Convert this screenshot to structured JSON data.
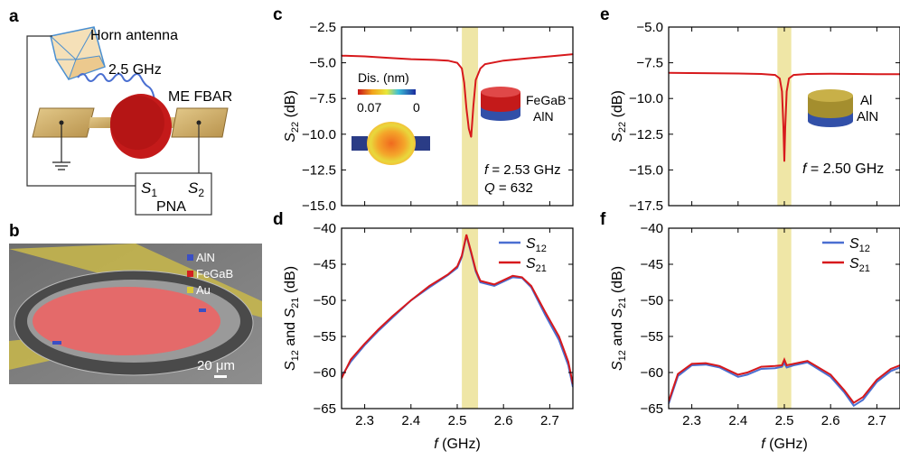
{
  "panels": {
    "a": {
      "letter": "a",
      "horn_label": "Horn antenna",
      "freq_label": "2.5 GHz",
      "device_label": "ME FBAR",
      "pna_s1": "S",
      "pna_s1_sub": "1",
      "pna_s2": "S",
      "pna_s2_sub": "2",
      "pna_label": "PNA"
    },
    "b": {
      "letter": "b",
      "legend": [
        "AlN",
        "FeGaB",
        "Au"
      ],
      "legend_colors": [
        "#3b4fc4",
        "#d32020",
        "#d8c838"
      ],
      "scale_bar": "20 μm"
    }
  },
  "colors": {
    "red": "#d7191c",
    "blue": "#4a6fd1",
    "band": "#efe6a6"
  },
  "chart_data": [
    {
      "id": "c",
      "letter": "c",
      "type": "line",
      "ylabel_main": "S",
      "ylabel_sub": "22",
      "ylabel_unit": " (dB)",
      "xlim": [
        2.25,
        2.75
      ],
      "ylim": [
        -15.0,
        -2.5
      ],
      "yticks": [
        -2.5,
        -5.0,
        -7.5,
        -10.0,
        -12.5,
        -15.0
      ],
      "ytick_labels": [
        "−2.5",
        "−5.0",
        "−7.5",
        "−10.0",
        "−12.5",
        "−15.0"
      ],
      "band": [
        2.51,
        2.545
      ],
      "series": [
        {
          "name": "",
          "color": "#d7191c",
          "x": [
            2.25,
            2.3,
            2.35,
            2.4,
            2.45,
            2.48,
            2.5,
            2.51,
            2.515,
            2.52,
            2.525,
            2.53,
            2.535,
            2.54,
            2.55,
            2.56,
            2.6,
            2.65,
            2.7,
            2.75
          ],
          "y": [
            -4.5,
            -4.55,
            -4.65,
            -4.75,
            -4.8,
            -4.85,
            -5.0,
            -5.4,
            -6.4,
            -8.2,
            -9.6,
            -10.2,
            -8.0,
            -6.2,
            -5.4,
            -5.1,
            -4.85,
            -4.7,
            -4.55,
            -4.4
          ]
        }
      ],
      "annotations": {
        "inset_title": "Dis. (nm)",
        "colorbar_min": "0.07",
        "colorbar_max": "0",
        "stack_top": "FeGaB",
        "stack_bottom": "AlN",
        "f_label": "f",
        "f_value": " = 2.53 GHz",
        "q_label": "Q",
        "q_value": " = 632"
      }
    },
    {
      "id": "d",
      "letter": "d",
      "type": "line",
      "ylabel_main": "S",
      "ylabel_sub": "12",
      "ylabel_mid": " and ",
      "ylabel_main2": "S",
      "ylabel_sub2": "21",
      "ylabel_unit": " (dB)",
      "xlabel_main": "f",
      "xlabel_unit": " (GHz)",
      "xlim": [
        2.25,
        2.75
      ],
      "ylim": [
        -65,
        -40
      ],
      "xticks": [
        2.3,
        2.4,
        2.5,
        2.6,
        2.7
      ],
      "xtick_labels": [
        "2.3",
        "2.4",
        "2.5",
        "2.6",
        "2.7"
      ],
      "yticks": [
        -40,
        -45,
        -50,
        -55,
        -60,
        -65
      ],
      "ytick_labels": [
        "−40",
        "−45",
        "−50",
        "−55",
        "−60",
        "−65"
      ],
      "band": [
        2.51,
        2.545
      ],
      "series": [
        {
          "name": "S",
          "sub": "12",
          "color": "#4a6fd1",
          "x": [
            2.25,
            2.27,
            2.3,
            2.33,
            2.36,
            2.4,
            2.44,
            2.48,
            2.5,
            2.51,
            2.52,
            2.53,
            2.54,
            2.55,
            2.58,
            2.62,
            2.64,
            2.66,
            2.69,
            2.72,
            2.74,
            2.75
          ],
          "y": [
            -60.5,
            -58.5,
            -56.2,
            -54.2,
            -52.4,
            -50.0,
            -48.2,
            -46.5,
            -45.5,
            -44.0,
            -41.0,
            -43.5,
            -46.0,
            -47.5,
            -48.0,
            -46.8,
            -46.9,
            -48.2,
            -52.0,
            -55.5,
            -59.0,
            -62.0
          ]
        },
        {
          "name": "S",
          "sub": "21",
          "color": "#d7191c",
          "x": [
            2.25,
            2.27,
            2.3,
            2.33,
            2.36,
            2.4,
            2.44,
            2.48,
            2.5,
            2.51,
            2.52,
            2.53,
            2.54,
            2.55,
            2.58,
            2.62,
            2.64,
            2.66,
            2.69,
            2.72,
            2.74,
            2.75
          ],
          "y": [
            -60.8,
            -58.2,
            -56.0,
            -54.0,
            -52.2,
            -50.0,
            -48.0,
            -46.4,
            -45.3,
            -43.8,
            -40.9,
            -43.3,
            -45.8,
            -47.3,
            -47.8,
            -46.6,
            -46.8,
            -48.0,
            -51.6,
            -55.0,
            -58.5,
            -61.6
          ]
        }
      ]
    },
    {
      "id": "e",
      "letter": "e",
      "type": "line",
      "ylabel_main": "S",
      "ylabel_sub": "22",
      "ylabel_unit": " (dB)",
      "xlim": [
        2.25,
        2.75
      ],
      "ylim": [
        -17.5,
        -5.0
      ],
      "yticks": [
        -5.0,
        -7.5,
        -10.0,
        -12.5,
        -15.0,
        -17.5
      ],
      "ytick_labels": [
        "−5.0",
        "−7.5",
        "−10.0",
        "−12.5",
        "−15.0",
        "−17.5"
      ],
      "band": [
        2.485,
        2.515
      ],
      "series": [
        {
          "name": "",
          "color": "#d7191c",
          "x": [
            2.25,
            2.3,
            2.4,
            2.45,
            2.48,
            2.49,
            2.495,
            2.498,
            2.5,
            2.502,
            2.505,
            2.51,
            2.52,
            2.55,
            2.6,
            2.7,
            2.75
          ],
          "y": [
            -8.2,
            -8.22,
            -8.25,
            -8.28,
            -8.35,
            -8.6,
            -9.5,
            -12.0,
            -14.4,
            -12.0,
            -9.5,
            -8.6,
            -8.35,
            -8.28,
            -8.27,
            -8.3,
            -8.3
          ]
        }
      ],
      "annotations": {
        "stack_top": "Al",
        "stack_bottom": "AlN",
        "f_label": "f",
        "f_value": " = 2.50 GHz"
      }
    },
    {
      "id": "f",
      "letter": "f",
      "type": "line",
      "ylabel_main": "S",
      "ylabel_sub": "12",
      "ylabel_mid": " and ",
      "ylabel_main2": "S",
      "ylabel_sub2": "21",
      "ylabel_unit": " (dB)",
      "xlabel_main": "f",
      "xlabel_unit": " (GHz)",
      "xlim": [
        2.25,
        2.75
      ],
      "ylim": [
        -65,
        -40
      ],
      "xticks": [
        2.3,
        2.4,
        2.5,
        2.6,
        2.7
      ],
      "xtick_labels": [
        "2.3",
        "2.4",
        "2.5",
        "2.6",
        "2.7"
      ],
      "yticks": [
        -40,
        -45,
        -50,
        -55,
        -60,
        -65
      ],
      "ytick_labels": [
        "−40",
        "−45",
        "−50",
        "−55",
        "−60",
        "−65"
      ],
      "band": [
        2.485,
        2.515
      ],
      "series": [
        {
          "name": "S",
          "sub": "12",
          "color": "#4a6fd1",
          "x": [
            2.25,
            2.27,
            2.3,
            2.33,
            2.36,
            2.4,
            2.42,
            2.45,
            2.48,
            2.495,
            2.5,
            2.505,
            2.52,
            2.55,
            2.6,
            2.63,
            2.65,
            2.67,
            2.7,
            2.73,
            2.75
          ],
          "y": [
            -64.3,
            -60.5,
            -59.0,
            -58.9,
            -59.3,
            -60.6,
            -60.3,
            -59.5,
            -59.4,
            -59.2,
            -58.7,
            -59.3,
            -59.0,
            -58.6,
            -60.6,
            -62.8,
            -64.6,
            -63.8,
            -61.3,
            -59.8,
            -59.3
          ]
        },
        {
          "name": "S",
          "sub": "21",
          "color": "#d7191c",
          "x": [
            2.25,
            2.27,
            2.3,
            2.33,
            2.36,
            2.4,
            2.42,
            2.45,
            2.48,
            2.495,
            2.5,
            2.505,
            2.52,
            2.55,
            2.6,
            2.63,
            2.65,
            2.67,
            2.7,
            2.73,
            2.75
          ],
          "y": [
            -64.0,
            -60.2,
            -58.8,
            -58.7,
            -59.1,
            -60.3,
            -60.0,
            -59.2,
            -59.1,
            -59.0,
            -58.2,
            -59.0,
            -58.8,
            -58.4,
            -60.3,
            -62.5,
            -64.2,
            -63.4,
            -61.0,
            -59.5,
            -59.0
          ]
        }
      ]
    }
  ]
}
